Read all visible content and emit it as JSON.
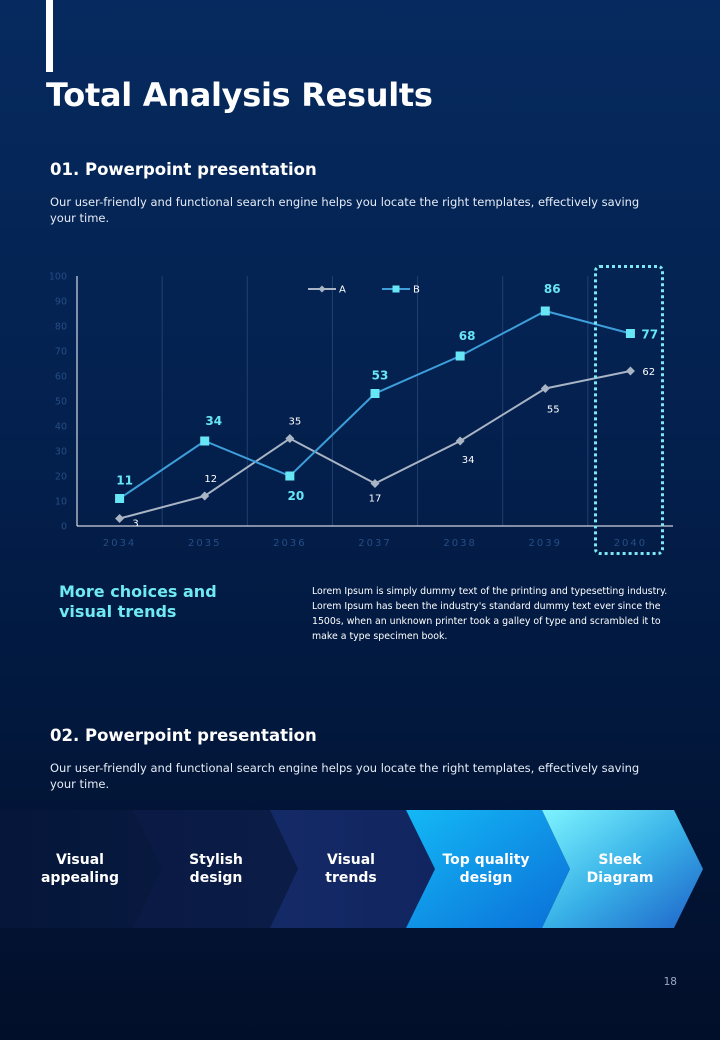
{
  "title": "Total Analysis Results",
  "section1": {
    "heading": "01. Powerpoint presentation",
    "description": "Our user-friendly and functional search engine helps you locate the right templates, effectively saving your time."
  },
  "chart_data": {
    "type": "line",
    "x": [
      "2034",
      "2035",
      "2036",
      "2037",
      "2038",
      "2039",
      "2040"
    ],
    "ylim": [
      0,
      100
    ],
    "yticks": [
      0,
      10,
      20,
      30,
      40,
      50,
      60,
      70,
      80,
      90,
      100
    ],
    "grid": "vertical",
    "legend": "top",
    "highlight_category": "2040",
    "series": [
      {
        "name": "A",
        "values": [
          3,
          12,
          35,
          17,
          34,
          55,
          62
        ],
        "color": "#a9b4c4",
        "marker": "diamond"
      },
      {
        "name": "B",
        "values": [
          11,
          34,
          20,
          53,
          68,
          86,
          77
        ],
        "color": "#3d9ed9",
        "marker": "square",
        "marker_color": "#67e6f5"
      }
    ]
  },
  "subsection": {
    "heading": "More choices and visual trends",
    "body": "Lorem Ipsum is simply dummy text of the printing and typesetting industry. Lorem Ipsum has been the industry's standard dummy text ever since the 1500s, when an unknown printer took a galley of type and scrambled it to make a type specimen book."
  },
  "section2": {
    "heading": "02. Powerpoint presentation",
    "description": "Our user-friendly and functional search engine helps you locate the right templates, effectively saving your time."
  },
  "process_steps": [
    {
      "label": "Visual\nappealing"
    },
    {
      "label": "Stylish\ndesign"
    },
    {
      "label": "Visual\ntrends"
    },
    {
      "label": "Top quality\ndesign"
    },
    {
      "label": "Sleek\nDiagram"
    }
  ],
  "page_number": "18",
  "colors": {
    "accent": "#6fe9f3",
    "background": "#031f4c"
  }
}
